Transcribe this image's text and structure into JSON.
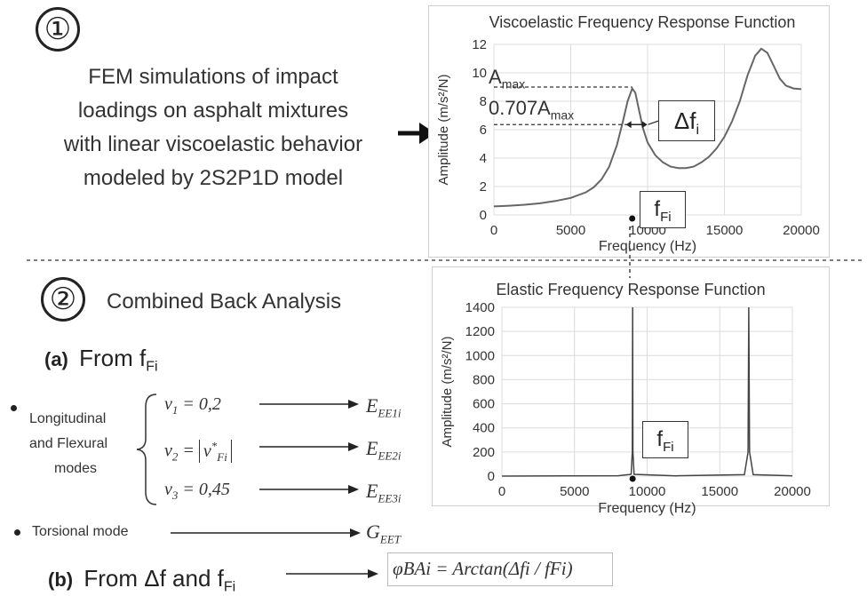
{
  "section1": {
    "number": "①",
    "description_lines": [
      "FEM simulations of impact",
      "loadings on asphalt mixtures",
      "with linear viscoelastic behavior",
      "modeled by 2S2P1D model"
    ]
  },
  "section2": {
    "number": "②",
    "title": "Combined Back Analysis",
    "sub_a_prefix": "(a)",
    "sub_a_text": "From f",
    "sub_a_sub": "Fi",
    "bullet1_lines": [
      "Longitudinal",
      "and Flexural",
      "modes"
    ],
    "bullet2": "Torsional mode",
    "nu1": "= 0,2",
    "nu2_mid": "F",
    "nu3": "= 0,45",
    "out1": "E",
    "out1_sub": "EE1i",
    "out2": "E",
    "out2_sub": "EE2i",
    "out3": "E",
    "out3_sub": "EE3i",
    "out4": "G",
    "out4_sub": "EET",
    "sub_b_prefix": "(b)",
    "sub_b_text": "From Δf and f",
    "sub_b_sub": "Fi",
    "formula": "φBAi = Arctan(Δfi / fFi)"
  },
  "chart_data": [
    {
      "type": "line",
      "title": "Viscoelastic Frequency Response Function",
      "xlabel": "Frequency (Hz)",
      "ylabel": "Amplitude (m/s²/N)",
      "xlim": [
        0,
        20000
      ],
      "ylim": [
        0,
        12
      ],
      "x_ticks": [
        "0",
        "5000",
        "10000",
        "15000",
        "20000"
      ],
      "y_ticks": [
        "0",
        "2",
        "4",
        "6",
        "8",
        "10",
        "12"
      ],
      "grid": true,
      "series": [
        {
          "x": [
            0,
            1000,
            2000,
            3000,
            4000,
            5000,
            6000,
            6500,
            7000,
            7500,
            8000,
            8400,
            8700,
            9000,
            9200,
            9400,
            9700,
            10000,
            10500,
            11000,
            11500,
            12000,
            12500,
            13000,
            13500,
            14000,
            14500,
            15000,
            15500,
            16000,
            16500,
            17000,
            17400,
            17800,
            18200,
            18600,
            19000,
            19500,
            20000
          ],
          "y": [
            0.6,
            0.65,
            0.72,
            0.82,
            0.98,
            1.2,
            1.6,
            1.95,
            2.5,
            3.4,
            4.9,
            6.6,
            8.0,
            8.9,
            8.6,
            7.6,
            6.1,
            5.1,
            4.2,
            3.7,
            3.4,
            3.3,
            3.3,
            3.4,
            3.7,
            4.1,
            4.7,
            5.5,
            6.6,
            8.0,
            9.8,
            11.2,
            11.7,
            11.4,
            10.5,
            9.6,
            9.1,
            8.9,
            8.85
          ]
        }
      ],
      "annotations": {
        "amax_label": "A",
        "amax_sub": "max",
        "amax_value": 9.0,
        "a707_label": "0.707A",
        "a707_sub": "max",
        "a707_value": 6.36,
        "delta_label": "Δf",
        "delta_sub": "i",
        "fFi_label": "f",
        "fFi_sub": "Fi",
        "fFi_value": 9000
      }
    },
    {
      "type": "line",
      "title": "Elastic Frequency Response Function",
      "xlabel": "Frequency (Hz)",
      "ylabel": "Amplitude (m/s²/N)",
      "xlim": [
        0,
        20000
      ],
      "ylim": [
        0,
        1400
      ],
      "x_ticks": [
        "0",
        "5000",
        "10000",
        "15000",
        "20000"
      ],
      "y_ticks": [
        "0",
        "200",
        "400",
        "600",
        "800",
        "1000",
        "1200",
        "1400"
      ],
      "grid": true,
      "series": [
        {
          "x": [
            0,
            8000,
            8900,
            8980,
            9000,
            9020,
            9100,
            12000,
            16700,
            16950,
            17000,
            17050,
            17300,
            20000
          ],
          "y": [
            0,
            3,
            15,
            200,
            1400,
            200,
            15,
            2,
            12,
            200,
            1400,
            200,
            12,
            2
          ]
        }
      ],
      "annotations": {
        "fFi_label": "f",
        "fFi_sub": "Fi",
        "fFi_value": 9000
      }
    }
  ]
}
